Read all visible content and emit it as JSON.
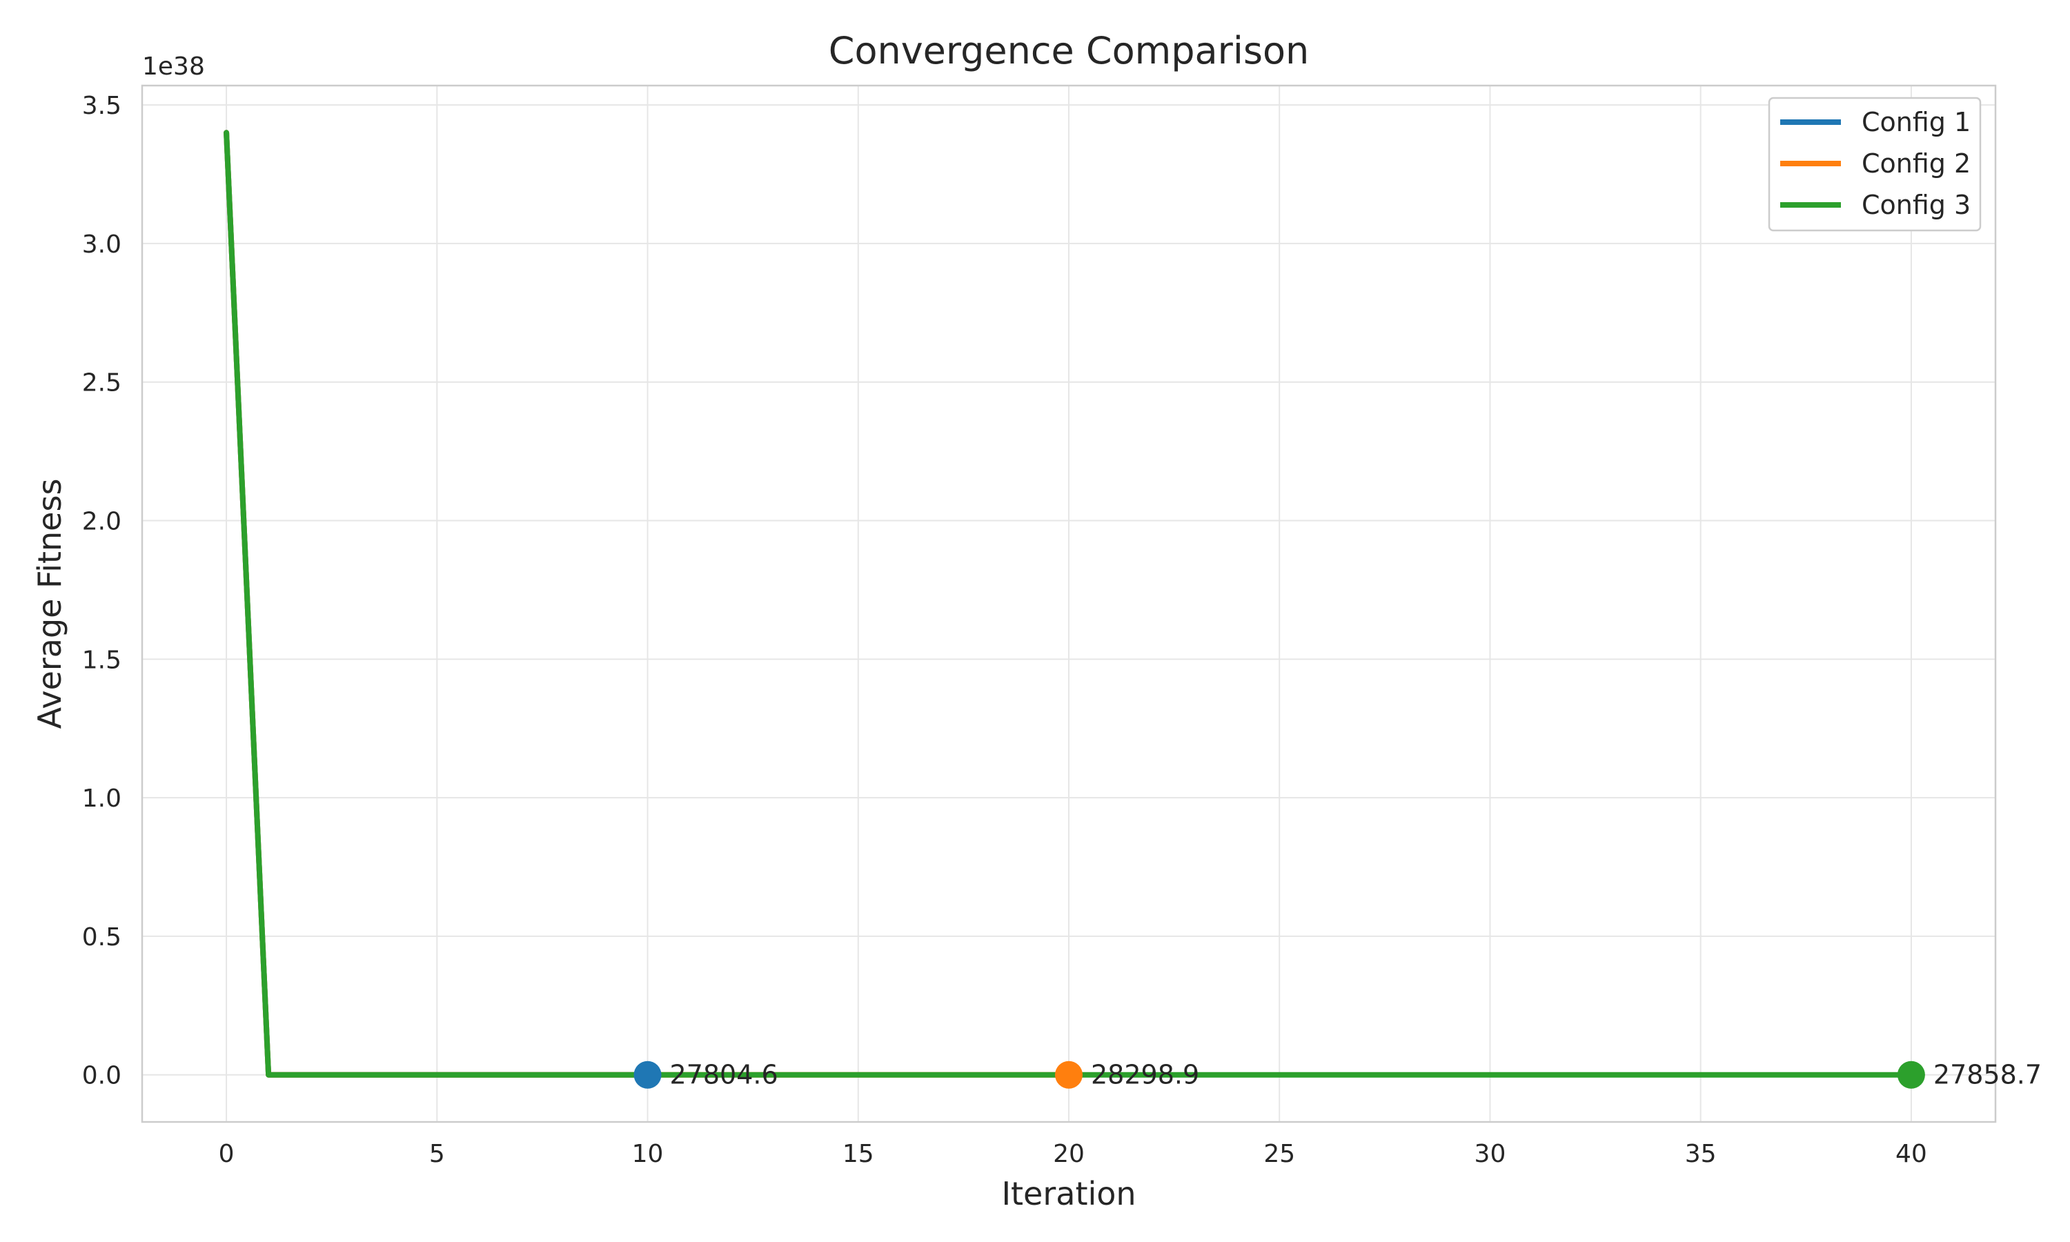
{
  "chart_data": {
    "type": "line",
    "title": "Convergence Comparison",
    "xlabel": "Iteration",
    "ylabel": "Average Fitness",
    "y_offset_label": "1e38",
    "y_scale_factor": 1e+38,
    "xlim": [
      -2,
      42
    ],
    "ylim": [
      -0.17,
      3.57
    ],
    "xticks": [
      0,
      5,
      10,
      15,
      20,
      25,
      30,
      35,
      40
    ],
    "yticks": [
      0.0,
      0.5,
      1.0,
      1.5,
      2.0,
      2.5,
      3.0,
      3.5
    ],
    "yticks_labels": [
      "0.0",
      "0.5",
      "1.0",
      "1.5",
      "2.0",
      "2.5",
      "3.0",
      "3.5"
    ],
    "grid": true,
    "legend_position": "top-right",
    "series": [
      {
        "name": "Config 1",
        "color": "#1f77b4",
        "x": [
          0,
          1,
          10
        ],
        "y": [
          3.4,
          0.0,
          0.0
        ],
        "end_marker": {
          "x": 10,
          "y": 0.0,
          "label": "27804.6"
        }
      },
      {
        "name": "Config 2",
        "color": "#ff7f0e",
        "x": [
          0,
          1,
          20
        ],
        "y": [
          3.4,
          0.0,
          0.0
        ],
        "end_marker": {
          "x": 20,
          "y": 0.0,
          "label": "28298.9"
        }
      },
      {
        "name": "Config 3",
        "color": "#2ca02c",
        "x": [
          0,
          1,
          40
        ],
        "y": [
          3.4,
          0.0,
          0.0
        ],
        "end_marker": {
          "x": 40,
          "y": 0.0,
          "label": "27858.7"
        }
      }
    ]
  }
}
